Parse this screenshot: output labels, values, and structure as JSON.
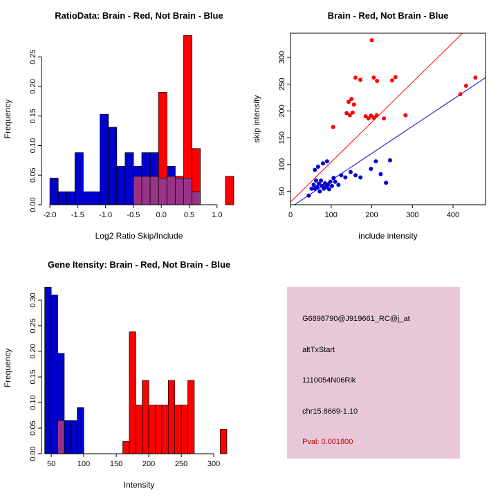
{
  "figure": {
    "background": "#FFFFFF"
  },
  "colors": {
    "brain_red": "#FF0000",
    "not_brain_blue": "#0000CC",
    "overlap_purple": "#993388"
  },
  "chart_data": [
    {
      "type": "histogram",
      "title": "RatioData: Brain - Red, Not Brain - Blue",
      "xlabel": "Log2 Ratio Skip/Include",
      "ylabel": "Frequency",
      "xlim": [
        -2.15,
        1.35
      ],
      "ylim": [
        0,
        0.29
      ],
      "grid": false,
      "xticks": [
        [
          -2,
          "-2.0"
        ],
        [
          -1.5,
          "-1.5"
        ],
        [
          -1,
          "-1.0"
        ],
        [
          -0.5,
          "-0.5"
        ],
        [
          0,
          "0.0"
        ],
        [
          0.5,
          "0.5"
        ],
        [
          1,
          "1.0"
        ]
      ],
      "yticks": [
        [
          0,
          "0.00"
        ],
        [
          0.05,
          "0.05"
        ],
        [
          0.1,
          "0.10"
        ],
        [
          0.15,
          "0.15"
        ],
        [
          0.2,
          "0.20"
        ],
        [
          0.25,
          "0.25"
        ]
      ],
      "series": [
        {
          "name": "not-brain-blue",
          "color": "#0000CC",
          "bars": [
            [
              -2.0,
              -1.85,
              0.045
            ],
            [
              -1.85,
              -1.7,
              0.022
            ],
            [
              -1.7,
              -1.55,
              0.022
            ],
            [
              -1.55,
              -1.4,
              0.088
            ],
            [
              -1.4,
              -1.25,
              0.022
            ],
            [
              -1.25,
              -1.1,
              0.022
            ],
            [
              -1.1,
              -0.95,
              0.153
            ],
            [
              -0.95,
              -0.8,
              0.131
            ],
            [
              -0.8,
              -0.65,
              0.065
            ],
            [
              -0.65,
              -0.5,
              0.088
            ],
            [
              -0.5,
              -0.35,
              0.065
            ],
            [
              -0.35,
              -0.2,
              0.088
            ],
            [
              -0.2,
              -0.05,
              0.088
            ],
            [
              -0.05,
              0.1,
              0.045
            ],
            [
              0.1,
              0.25,
              0.065
            ],
            [
              0.25,
              0.4,
              0.045
            ],
            [
              0.4,
              0.55,
              0.045
            ],
            [
              0.55,
              0.7,
              0.022
            ]
          ]
        },
        {
          "name": "brain-red",
          "color": "#FF0000",
          "bars": [
            [
              -0.5,
              -0.35,
              0.048
            ],
            [
              -0.35,
              -0.2,
              0.048
            ],
            [
              -0.2,
              -0.05,
              0.048
            ],
            [
              -0.05,
              0.1,
              0.19
            ],
            [
              0.1,
              0.25,
              0.048
            ],
            [
              0.25,
              0.4,
              0.048
            ],
            [
              0.4,
              0.55,
              0.286
            ],
            [
              0.55,
              0.7,
              0.095
            ],
            [
              1.15,
              1.3,
              0.048
            ]
          ]
        },
        {
          "name": "overlap-purple",
          "color": "#993388",
          "bars": [
            [
              -0.5,
              -0.35,
              0.048
            ],
            [
              -0.35,
              -0.2,
              0.048
            ],
            [
              -0.2,
              -0.05,
              0.048
            ],
            [
              -0.05,
              0.1,
              0.045
            ],
            [
              0.1,
              0.25,
              0.048
            ],
            [
              0.25,
              0.4,
              0.045
            ],
            [
              0.4,
              0.55,
              0.045
            ],
            [
              0.55,
              0.7,
              0.022
            ]
          ]
        }
      ]
    },
    {
      "type": "scatter",
      "title": "Brain - Red, Not Brain - Blue",
      "xlabel": "include intensity",
      "ylabel": "skip intensity",
      "xlim": [
        0,
        480
      ],
      "ylim": [
        25,
        345
      ],
      "box": true,
      "grid": false,
      "xticks": [
        [
          0,
          "0"
        ],
        [
          100,
          "100"
        ],
        [
          200,
          "200"
        ],
        [
          300,
          "300"
        ],
        [
          400,
          "400"
        ]
      ],
      "yticks": [
        [
          50,
          "50"
        ],
        [
          100,
          "100"
        ],
        [
          150,
          "150"
        ],
        [
          200,
          "200"
        ],
        [
          250,
          "250"
        ],
        [
          300,
          "300"
        ]
      ],
      "series": [
        {
          "name": "brain-red",
          "color": "#FF0000",
          "points": [
            [
              200,
              332
            ],
            [
              160,
              262
            ],
            [
              172,
              258
            ],
            [
              205,
              262
            ],
            [
              213,
              256
            ],
            [
              250,
              257
            ],
            [
              258,
              263
            ],
            [
              455,
              262
            ],
            [
              432,
              247
            ],
            [
              418,
              231
            ],
            [
              143,
              217
            ],
            [
              150,
              222
            ],
            [
              156,
              212
            ],
            [
              138,
              196
            ],
            [
              146,
              192
            ],
            [
              153,
              197
            ],
            [
              185,
              190
            ],
            [
              192,
              186
            ],
            [
              198,
              191
            ],
            [
              205,
              187
            ],
            [
              212,
              192
            ],
            [
              105,
              170
            ],
            [
              230,
              186
            ],
            [
              283,
              192
            ]
          ]
        },
        {
          "name": "not-brain-blue",
          "color": "#0000CC",
          "points": [
            [
              45,
              42
            ],
            [
              52,
              55
            ],
            [
              57,
              62
            ],
            [
              60,
              55
            ],
            [
              63,
              70
            ],
            [
              66,
              58
            ],
            [
              70,
              64
            ],
            [
              72,
              50
            ],
            [
              75,
              70
            ],
            [
              78,
              60
            ],
            [
              82,
              55
            ],
            [
              85,
              65
            ],
            [
              88,
              58
            ],
            [
              92,
              62
            ],
            [
              95,
              54
            ],
            [
              98,
              68
            ],
            [
              102,
              60
            ],
            [
              106,
              75
            ],
            [
              110,
              68
            ],
            [
              60,
              90
            ],
            [
              68,
              96
            ],
            [
              80,
              102
            ],
            [
              90,
              106
            ],
            [
              118,
              62
            ],
            [
              125,
              80
            ],
            [
              135,
              76
            ],
            [
              148,
              86
            ],
            [
              160,
              80
            ],
            [
              172,
              76
            ],
            [
              198,
              92
            ],
            [
              210,
              106
            ],
            [
              222,
              82
            ],
            [
              235,
              66
            ],
            [
              245,
              108
            ]
          ]
        }
      ],
      "lines": [
        [
          0,
          30,
          430,
          350,
          "#FF0000"
        ],
        [
          0,
          20,
          480,
          262,
          "#0000CC"
        ]
      ]
    },
    {
      "type": "histogram",
      "title": "Gene Itensity: Brain - Red, Not Brain - Blue",
      "xlabel": "Intensity",
      "ylabel": "Frequency",
      "xlim": [
        35,
        335
      ],
      "ylim": [
        0,
        0.335
      ],
      "grid": false,
      "xticks": [
        [
          50,
          "50"
        ],
        [
          100,
          "100"
        ],
        [
          150,
          "150"
        ],
        [
          200,
          "200"
        ],
        [
          250,
          "250"
        ],
        [
          300,
          "300"
        ]
      ],
      "yticks": [
        [
          0,
          "0.00"
        ],
        [
          0.05,
          "0.05"
        ],
        [
          0.1,
          "0.10"
        ],
        [
          0.15,
          "0.15"
        ],
        [
          0.2,
          "0.20"
        ],
        [
          0.25,
          "0.25"
        ],
        [
          0.3,
          "0.30"
        ]
      ],
      "series": [
        {
          "name": "not-brain-blue",
          "color": "#0000CC",
          "bars": [
            [
              40,
              50,
              0.325
            ],
            [
              50,
              60,
              0.31
            ],
            [
              60,
              70,
              0.196
            ],
            [
              70,
              80,
              0.065
            ],
            [
              80,
              90,
              0.065
            ],
            [
              90,
              100,
              0.09
            ]
          ]
        },
        {
          "name": "brain-red",
          "color": "#FF0000",
          "bars": [
            [
              60,
              70,
              0.065
            ],
            [
              160,
              170,
              0.024
            ],
            [
              170,
              180,
              0.238
            ],
            [
              180,
              190,
              0.095
            ],
            [
              190,
              200,
              0.143
            ],
            [
              200,
              210,
              0.095
            ],
            [
              210,
              220,
              0.095
            ],
            [
              220,
              230,
              0.095
            ],
            [
              230,
              240,
              0.143
            ],
            [
              240,
              250,
              0.095
            ],
            [
              250,
              260,
              0.095
            ],
            [
              260,
              270,
              0.143
            ],
            [
              310,
              320,
              0.048
            ]
          ]
        },
        {
          "name": "overlap-purple",
          "color": "#993388",
          "bars": [
            [
              60,
              70,
              0.065
            ]
          ]
        }
      ]
    }
  ],
  "info_box": {
    "background": "#E8C8D8",
    "probe_id": "G6898790@J919661_RC@j_at",
    "event_type": "altTxStart",
    "gene_symbol": "1110054N06Rik",
    "locus": "chr15.8669-1.10",
    "pvalue": "Pval: 0.001800",
    "pvalue_color": "#CC0000"
  }
}
